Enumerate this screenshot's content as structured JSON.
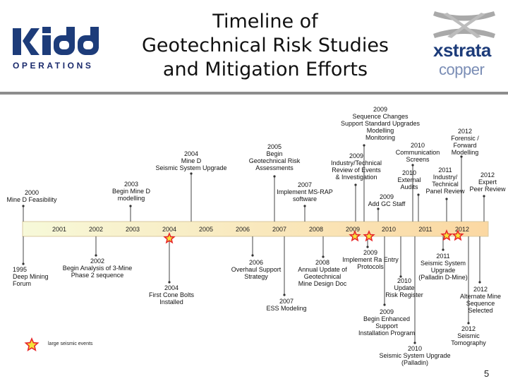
{
  "header": {
    "left_logo": {
      "wordmark": "kidd",
      "subtitle": "OPERATIONS"
    },
    "title": [
      "Timeline of",
      "Geotechnical Risk Studies",
      "and Mitigation Efforts"
    ],
    "right_logo": {
      "line1": "xstrata",
      "line2": "copper"
    }
  },
  "timeline": {
    "years": [
      "2001",
      "2002",
      "2003",
      "2004",
      "2005",
      "2006",
      "2007",
      "2008",
      "2009",
      "2010",
      "2011",
      "2012"
    ],
    "bar_start_color": "#f7f9d9",
    "bar_end_color": "#fbd8a2",
    "events_above": [
      {
        "lines": [
          "2000",
          "Mine D Feasibility"
        ]
      },
      {
        "lines": [
          "2003",
          "Begin Mine D",
          "modelling"
        ]
      },
      {
        "lines": [
          "2004",
          "Mine D",
          "Seismic System Upgrade"
        ]
      },
      {
        "lines": [
          "2005",
          "Begin",
          "Geotechnical Risk",
          "Assessments"
        ]
      },
      {
        "lines": [
          "2007",
          "Implement MS-RAP",
          "software"
        ]
      },
      {
        "lines": [
          "2009",
          "Industry/Technical",
          "Review of Events",
          "& Investigation"
        ]
      },
      {
        "lines": [
          "2009",
          "Sequence Changes",
          "Support Standard Upgrades",
          "Modelling",
          "Monitoring"
        ]
      },
      {
        "lines": [
          "2009",
          "Add GC Staff"
        ]
      },
      {
        "lines": [
          "2010",
          "Communication",
          "Screens"
        ]
      },
      {
        "lines": [
          "2010",
          "External",
          "Audits"
        ]
      },
      {
        "lines": [
          "2011",
          "Industry/",
          "Technical",
          "Panel Review"
        ]
      },
      {
        "lines": [
          "2012",
          "Forensic /",
          "Forward",
          "Modelling"
        ]
      },
      {
        "lines": [
          "2012",
          "Expert",
          "Peer Review"
        ]
      }
    ],
    "events_below": [
      {
        "lines": [
          "1995",
          "Deep Mining",
          "Forum"
        ]
      },
      {
        "lines": [
          "2002",
          "Begin Analysis of 3-Mine",
          "Phase 2 sequence"
        ]
      },
      {
        "lines": [
          "2004",
          "First Cone Bolts",
          "Installed"
        ]
      },
      {
        "lines": [
          "2006",
          "Overhaul Support",
          "Strategy"
        ]
      },
      {
        "lines": [
          "2007",
          "ESS Modeling"
        ]
      },
      {
        "lines": [
          "2008",
          "Annual Update of",
          "Geotechnical",
          "Mine Design Doc"
        ]
      },
      {
        "lines": [
          "2009",
          "Implement Ra Entry",
          "Protocols"
        ]
      },
      {
        "lines": [
          "2009",
          "Begin Enhanced",
          "Support",
          "Installation Program"
        ]
      },
      {
        "lines": [
          "2010",
          "Update",
          "Risk Register"
        ]
      },
      {
        "lines": [
          "2010",
          "Seismic System Upgrade",
          "(Palladin)"
        ]
      },
      {
        "lines": [
          "2011",
          "Seismic System",
          "Upgrade",
          "(Palladin D-Mine)"
        ]
      },
      {
        "lines": [
          "2012",
          "Alternate Mine",
          "Sequence",
          "Selected"
        ]
      },
      {
        "lines": [
          "2012",
          "Seismic",
          "Tomography"
        ]
      }
    ],
    "star_color": "#e8282a",
    "star_fill": "#f5e43a"
  },
  "legend": {
    "label": "large seismic events"
  },
  "footer": {
    "page_number": "5"
  }
}
